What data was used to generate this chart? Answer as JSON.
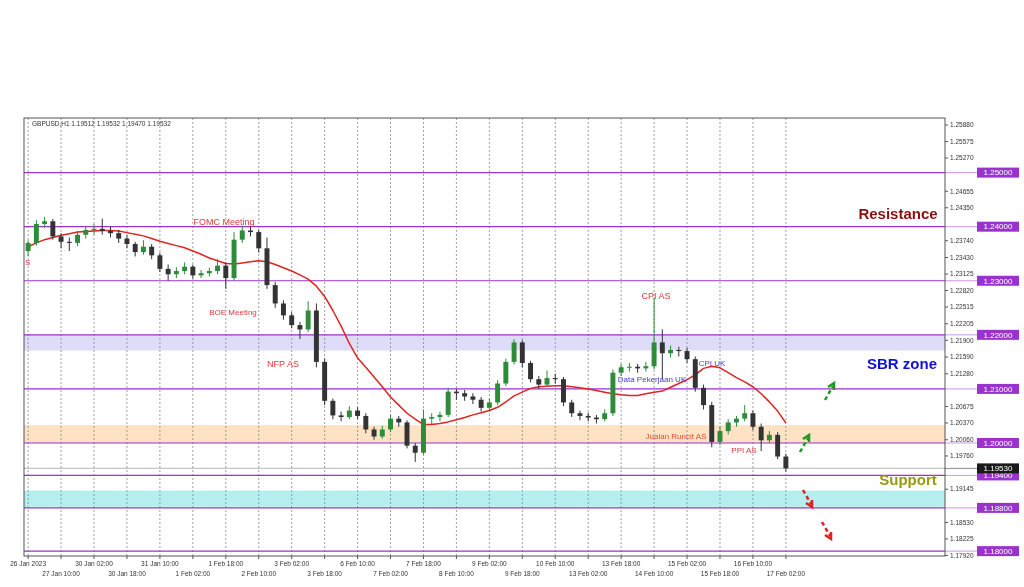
{
  "chart_data": {
    "type": "candlestick",
    "title": "GBPUSD,H1  1.19512 1.19532 1.19470 1.19532",
    "categories": [
      "26 Jan 2023",
      null,
      null,
      null,
      "27 Jan 10:00",
      null,
      null,
      null,
      "30 Jan 02:00",
      null,
      null,
      null,
      "30 Jan 18:00",
      null,
      null,
      null,
      "31 Jan 10:00",
      null,
      null,
      null,
      "1 Feb 02:00",
      null,
      null,
      null,
      "1 Feb 18:00",
      null,
      null,
      null,
      "2 Feb 10:00",
      null,
      null,
      null,
      "3 Feb 02:00",
      null,
      null,
      null,
      "3 Feb 18:00",
      null,
      null,
      null,
      "6 Feb 10:00",
      null,
      null,
      null,
      "7 Feb 02:00",
      null,
      null,
      null,
      "7 Feb 18:00",
      null,
      null,
      null,
      "8 Feb 10:00",
      null,
      null,
      null,
      "9 Feb 02:00",
      null,
      null,
      null,
      "9 Feb 18:00",
      null,
      null,
      null,
      "10 Feb 10:00",
      null,
      null,
      null,
      "13 Feb 02:00",
      null,
      null,
      null,
      "13 Feb 18:00",
      null,
      null,
      null,
      "14 Feb 10:00",
      null,
      null,
      null,
      "15 Feb 02:00",
      null,
      null,
      null,
      "15 Feb 18:00",
      null,
      null,
      null,
      "16 Feb 10:00",
      null,
      null,
      null,
      "17 Feb 02:00"
    ],
    "ohlc": [
      [
        1.2355,
        1.2375,
        1.2345,
        1.237
      ],
      [
        1.237,
        1.2412,
        1.2365,
        1.2405
      ],
      [
        1.2405,
        1.2418,
        1.2398,
        1.241
      ],
      [
        1.241,
        1.2414,
        1.2376,
        1.2382
      ],
      [
        1.2382,
        1.2388,
        1.236,
        1.2372
      ],
      [
        1.2372,
        1.238,
        1.2355,
        1.237
      ],
      [
        1.237,
        1.2392,
        1.2364,
        1.2385
      ],
      [
        1.2385,
        1.24,
        1.2378,
        1.2394
      ],
      [
        1.2394,
        1.2405,
        1.2386,
        1.2396
      ],
      [
        1.2396,
        1.2415,
        1.2385,
        1.2392
      ],
      [
        1.2392,
        1.24,
        1.238,
        1.2388
      ],
      [
        1.2388,
        1.2394,
        1.237,
        1.2378
      ],
      [
        1.2378,
        1.2384,
        1.236,
        1.2368
      ],
      [
        1.2368,
        1.2372,
        1.2345,
        1.2353
      ],
      [
        1.2353,
        1.2375,
        1.2348,
        1.2363
      ],
      [
        1.2363,
        1.2368,
        1.234,
        1.2347
      ],
      [
        1.2347,
        1.2352,
        1.2316,
        1.2322
      ],
      [
        1.2322,
        1.233,
        1.23,
        1.2312
      ],
      [
        1.2312,
        1.2325,
        1.2305,
        1.2318
      ],
      [
        1.2318,
        1.2334,
        1.2312,
        1.2326
      ],
      [
        1.2326,
        1.233,
        1.2304,
        1.231
      ],
      [
        1.231,
        1.232,
        1.2305,
        1.2314
      ],
      [
        1.2314,
        1.2324,
        1.2308,
        1.2318
      ],
      [
        1.2318,
        1.234,
        1.2312,
        1.2328
      ],
      [
        1.2328,
        1.2334,
        1.2285,
        1.2305
      ],
      [
        1.2305,
        1.239,
        1.23,
        1.2376
      ],
      [
        1.2376,
        1.2402,
        1.237,
        1.2393
      ],
      [
        1.2393,
        1.24,
        1.2382,
        1.239
      ],
      [
        1.239,
        1.2395,
        1.2352,
        1.236
      ],
      [
        1.236,
        1.238,
        1.2285,
        1.2292
      ],
      [
        1.2292,
        1.2298,
        1.225,
        1.2258
      ],
      [
        1.2258,
        1.2264,
        1.2228,
        1.2236
      ],
      [
        1.2236,
        1.2242,
        1.2212,
        1.2218
      ],
      [
        1.2218,
        1.2224,
        1.2192,
        1.221
      ],
      [
        1.221,
        1.2262,
        1.2205,
        1.2245
      ],
      [
        1.2245,
        1.2258,
        1.214,
        1.215
      ],
      [
        1.215,
        1.2156,
        1.207,
        1.2078
      ],
      [
        1.2078,
        1.2082,
        1.2044,
        1.2051
      ],
      [
        1.2051,
        1.2058,
        1.204,
        1.2048
      ],
      [
        1.2048,
        1.2068,
        1.2044,
        1.206
      ],
      [
        1.206,
        1.2066,
        1.2044,
        1.205
      ],
      [
        1.205,
        1.2055,
        1.2018,
        1.2025
      ],
      [
        1.2025,
        1.203,
        1.2006,
        1.2012
      ],
      [
        1.2012,
        1.2032,
        1.2008,
        1.2025
      ],
      [
        1.2025,
        1.2052,
        1.202,
        1.2045
      ],
      [
        1.2045,
        1.205,
        1.203,
        1.2038
      ],
      [
        1.2038,
        1.2042,
        1.199,
        1.1995
      ],
      [
        1.1995,
        1.2,
        1.1965,
        1.1982
      ],
      [
        1.1982,
        1.2062,
        1.1978,
        1.2045
      ],
      [
        1.2045,
        1.2055,
        1.2035,
        1.2048
      ],
      [
        1.2048,
        1.2058,
        1.204,
        1.2052
      ],
      [
        1.2052,
        1.2102,
        1.2048,
        1.2095
      ],
      [
        1.2095,
        1.21,
        1.208,
        1.2092
      ],
      [
        1.2092,
        1.2098,
        1.2078,
        1.2086
      ],
      [
        1.2086,
        1.2092,
        1.2072,
        1.208
      ],
      [
        1.208,
        1.2085,
        1.2058,
        1.2065
      ],
      [
        1.2065,
        1.2082,
        1.206,
        1.2075
      ],
      [
        1.2075,
        1.2116,
        1.207,
        1.211
      ],
      [
        1.211,
        1.2156,
        1.2105,
        1.215
      ],
      [
        1.215,
        1.2192,
        1.2145,
        1.2186
      ],
      [
        1.2186,
        1.219,
        1.214,
        1.2148
      ],
      [
        1.2148,
        1.2152,
        1.2112,
        1.2118
      ],
      [
        1.2118,
        1.2124,
        1.21,
        1.2108
      ],
      [
        1.2108,
        1.2134,
        1.2104,
        1.212
      ],
      [
        1.212,
        1.2128,
        1.211,
        1.2118
      ],
      [
        1.2118,
        1.2122,
        1.2068,
        1.2075
      ],
      [
        1.2075,
        1.208,
        1.2048,
        1.2055
      ],
      [
        1.2055,
        1.206,
        1.2042,
        1.205
      ],
      [
        1.205,
        1.2056,
        1.204,
        1.2047
      ],
      [
        1.2047,
        1.2052,
        1.2036,
        1.2044
      ],
      [
        1.2044,
        1.2062,
        1.204,
        1.2055
      ],
      [
        1.2055,
        1.2136,
        1.205,
        1.213
      ],
      [
        1.213,
        1.2146,
        1.2124,
        1.214
      ],
      [
        1.214,
        1.2148,
        1.2132,
        1.2141
      ],
      [
        1.2141,
        1.2146,
        1.213,
        1.2138
      ],
      [
        1.2138,
        1.215,
        1.2132,
        1.2142
      ],
      [
        1.2142,
        1.2269,
        1.2136,
        1.2186
      ],
      [
        1.2186,
        1.221,
        1.2118,
        1.2166
      ],
      [
        1.2166,
        1.218,
        1.2158,
        1.2172
      ],
      [
        1.2172,
        1.2178,
        1.216,
        1.217
      ],
      [
        1.217,
        1.2176,
        1.2148,
        1.2155
      ],
      [
        1.2155,
        1.216,
        1.2095,
        1.2102
      ],
      [
        1.2102,
        1.2108,
        1.2062,
        1.207
      ],
      [
        1.207,
        1.2076,
        1.1992,
        1.2002
      ],
      [
        1.2002,
        1.203,
        1.1996,
        1.2022
      ],
      [
        1.2022,
        1.2044,
        1.2016,
        1.2038
      ],
      [
        1.2038,
        1.205,
        1.203,
        1.2045
      ],
      [
        1.2045,
        1.207,
        1.204,
        1.2055
      ],
      [
        1.2055,
        1.206,
        1.2024,
        1.203
      ],
      [
        1.203,
        1.2036,
        1.1985,
        1.2005
      ],
      [
        1.2005,
        1.2022,
        1.2,
        1.2015
      ],
      [
        1.2015,
        1.202,
        1.197,
        1.1975
      ],
      [
        1.1975,
        1.198,
        1.1947,
        1.1953
      ]
    ],
    "series": [
      {
        "type": "line",
        "color": "#e02424",
        "values": [
          1.2363,
          1.237,
          1.2376,
          1.238,
          1.2384,
          1.2387,
          1.239,
          1.2391,
          1.2392,
          1.2393,
          1.2393,
          1.2392,
          1.2389,
          1.2386,
          1.2383,
          1.2378,
          1.2373,
          1.2369,
          1.2365,
          1.2361,
          1.2355,
          1.2349,
          1.2342,
          1.2337,
          1.2332,
          1.2331,
          1.2333,
          1.2335,
          1.2337,
          1.2335,
          1.233,
          1.2324,
          1.2318,
          1.2311,
          1.2303,
          1.229,
          1.2271,
          1.2245,
          1.2216,
          1.2184,
          1.2157,
          1.214,
          1.2122,
          1.2104,
          1.2085,
          1.207,
          1.2055,
          1.2044,
          1.2034,
          1.2034,
          1.2036,
          1.2039,
          1.2043,
          1.2047,
          1.2052,
          1.2056,
          1.206,
          1.2066,
          1.2076,
          1.2087,
          1.2094,
          1.2101,
          1.2104,
          1.2105,
          1.2106,
          1.2106,
          1.2104,
          1.2102,
          1.21,
          1.2097,
          1.2094,
          1.2091,
          1.2089,
          1.2088,
          1.2088,
          1.2091,
          1.2094,
          1.2096,
          1.2103,
          1.211,
          1.2117,
          1.2126,
          1.2138,
          1.2142,
          1.2139,
          1.213,
          1.2121,
          1.2113,
          1.2104,
          1.2091,
          1.2076,
          1.2059,
          1.2037
        ]
      }
    ],
    "ylim": [
      1.1791,
      1.2601
    ],
    "yticks": [
      {
        "value": 1.2588,
        "label": "1.25880"
      },
      {
        "value": 1.25575,
        "label": "1.25575"
      },
      {
        "value": 1.2527,
        "label": "1.25270"
      },
      {
        "value": 1.24655,
        "label": "1.24655"
      },
      {
        "value": 1.2435,
        "label": "1.24350"
      },
      {
        "value": 1.2374,
        "label": "1.23740"
      },
      {
        "value": 1.2343,
        "label": "1.23430"
      },
      {
        "value": 1.23125,
        "label": "1.23125"
      },
      {
        "value": 1.2282,
        "label": "1.22820"
      },
      {
        "value": 1.22515,
        "label": "1.22515"
      },
      {
        "value": 1.22205,
        "label": "1.22205"
      },
      {
        "value": 1.219,
        "label": "1.21900"
      },
      {
        "value": 1.2159,
        "label": "1.21590"
      },
      {
        "value": 1.2128,
        "label": "1.21280"
      },
      {
        "value": 1.20675,
        "label": "1.20675"
      },
      {
        "value": 1.2037,
        "label": "1.20370"
      },
      {
        "value": 1.2006,
        "label": "1.20060"
      },
      {
        "value": 1.1976,
        "label": "1.19760"
      },
      {
        "value": 1.19145,
        "label": "1.19145"
      },
      {
        "value": 1.1853,
        "label": "1.18530"
      },
      {
        "value": 1.18225,
        "label": "1.18225"
      },
      {
        "value": 1.1792,
        "label": "1.17920"
      }
    ],
    "grid": "x",
    "ref_lines": [
      {
        "axis": "y",
        "value": 1.25,
        "label": "1.25000",
        "color": "#9933cc"
      },
      {
        "axis": "y",
        "value": 1.24,
        "label": "1.24000",
        "color": "#9933cc"
      },
      {
        "axis": "y",
        "value": 1.23,
        "label": "1.23000",
        "color": "#9933cc"
      },
      {
        "axis": "y",
        "value": 1.22,
        "label": "1.22000",
        "color": "#9933cc"
      },
      {
        "axis": "y",
        "value": 1.21,
        "label": "1.21000",
        "color": "#9933cc"
      },
      {
        "axis": "y",
        "value": 1.2,
        "label": "1.20000",
        "color": "#9933cc"
      },
      {
        "axis": "y",
        "value": 1.194,
        "label": "1.19400",
        "color": "#9933cc"
      },
      {
        "axis": "y",
        "value": 1.188,
        "label": "1.18800",
        "color": "#9933cc"
      },
      {
        "axis": "y",
        "value": 1.18,
        "label": "1.18000",
        "color": "#9933cc"
      },
      {
        "axis": "y",
        "value": 1.1953,
        "label": "1.19530",
        "color": "#1a1a1a"
      }
    ],
    "bands": [
      {
        "axis": "y",
        "from": 1.2171,
        "to": 1.22,
        "color": "#dedcf8"
      },
      {
        "axis": "y",
        "from": 1.2,
        "to": 1.2033,
        "color": "#fde2c4"
      },
      {
        "axis": "y",
        "from": 1.1882,
        "to": 1.1912,
        "color": "#b4eeee"
      }
    ],
    "annotations": [
      "FOMC Meeting",
      "BOE Meeting",
      "NFP AS",
      "S",
      "CPI AS",
      "CPI UK",
      "Data Pekerjaan UK",
      "Jualan Runcit AS",
      "PPI AS",
      "Resistance",
      "SBR zone",
      "Support"
    ]
  }
}
